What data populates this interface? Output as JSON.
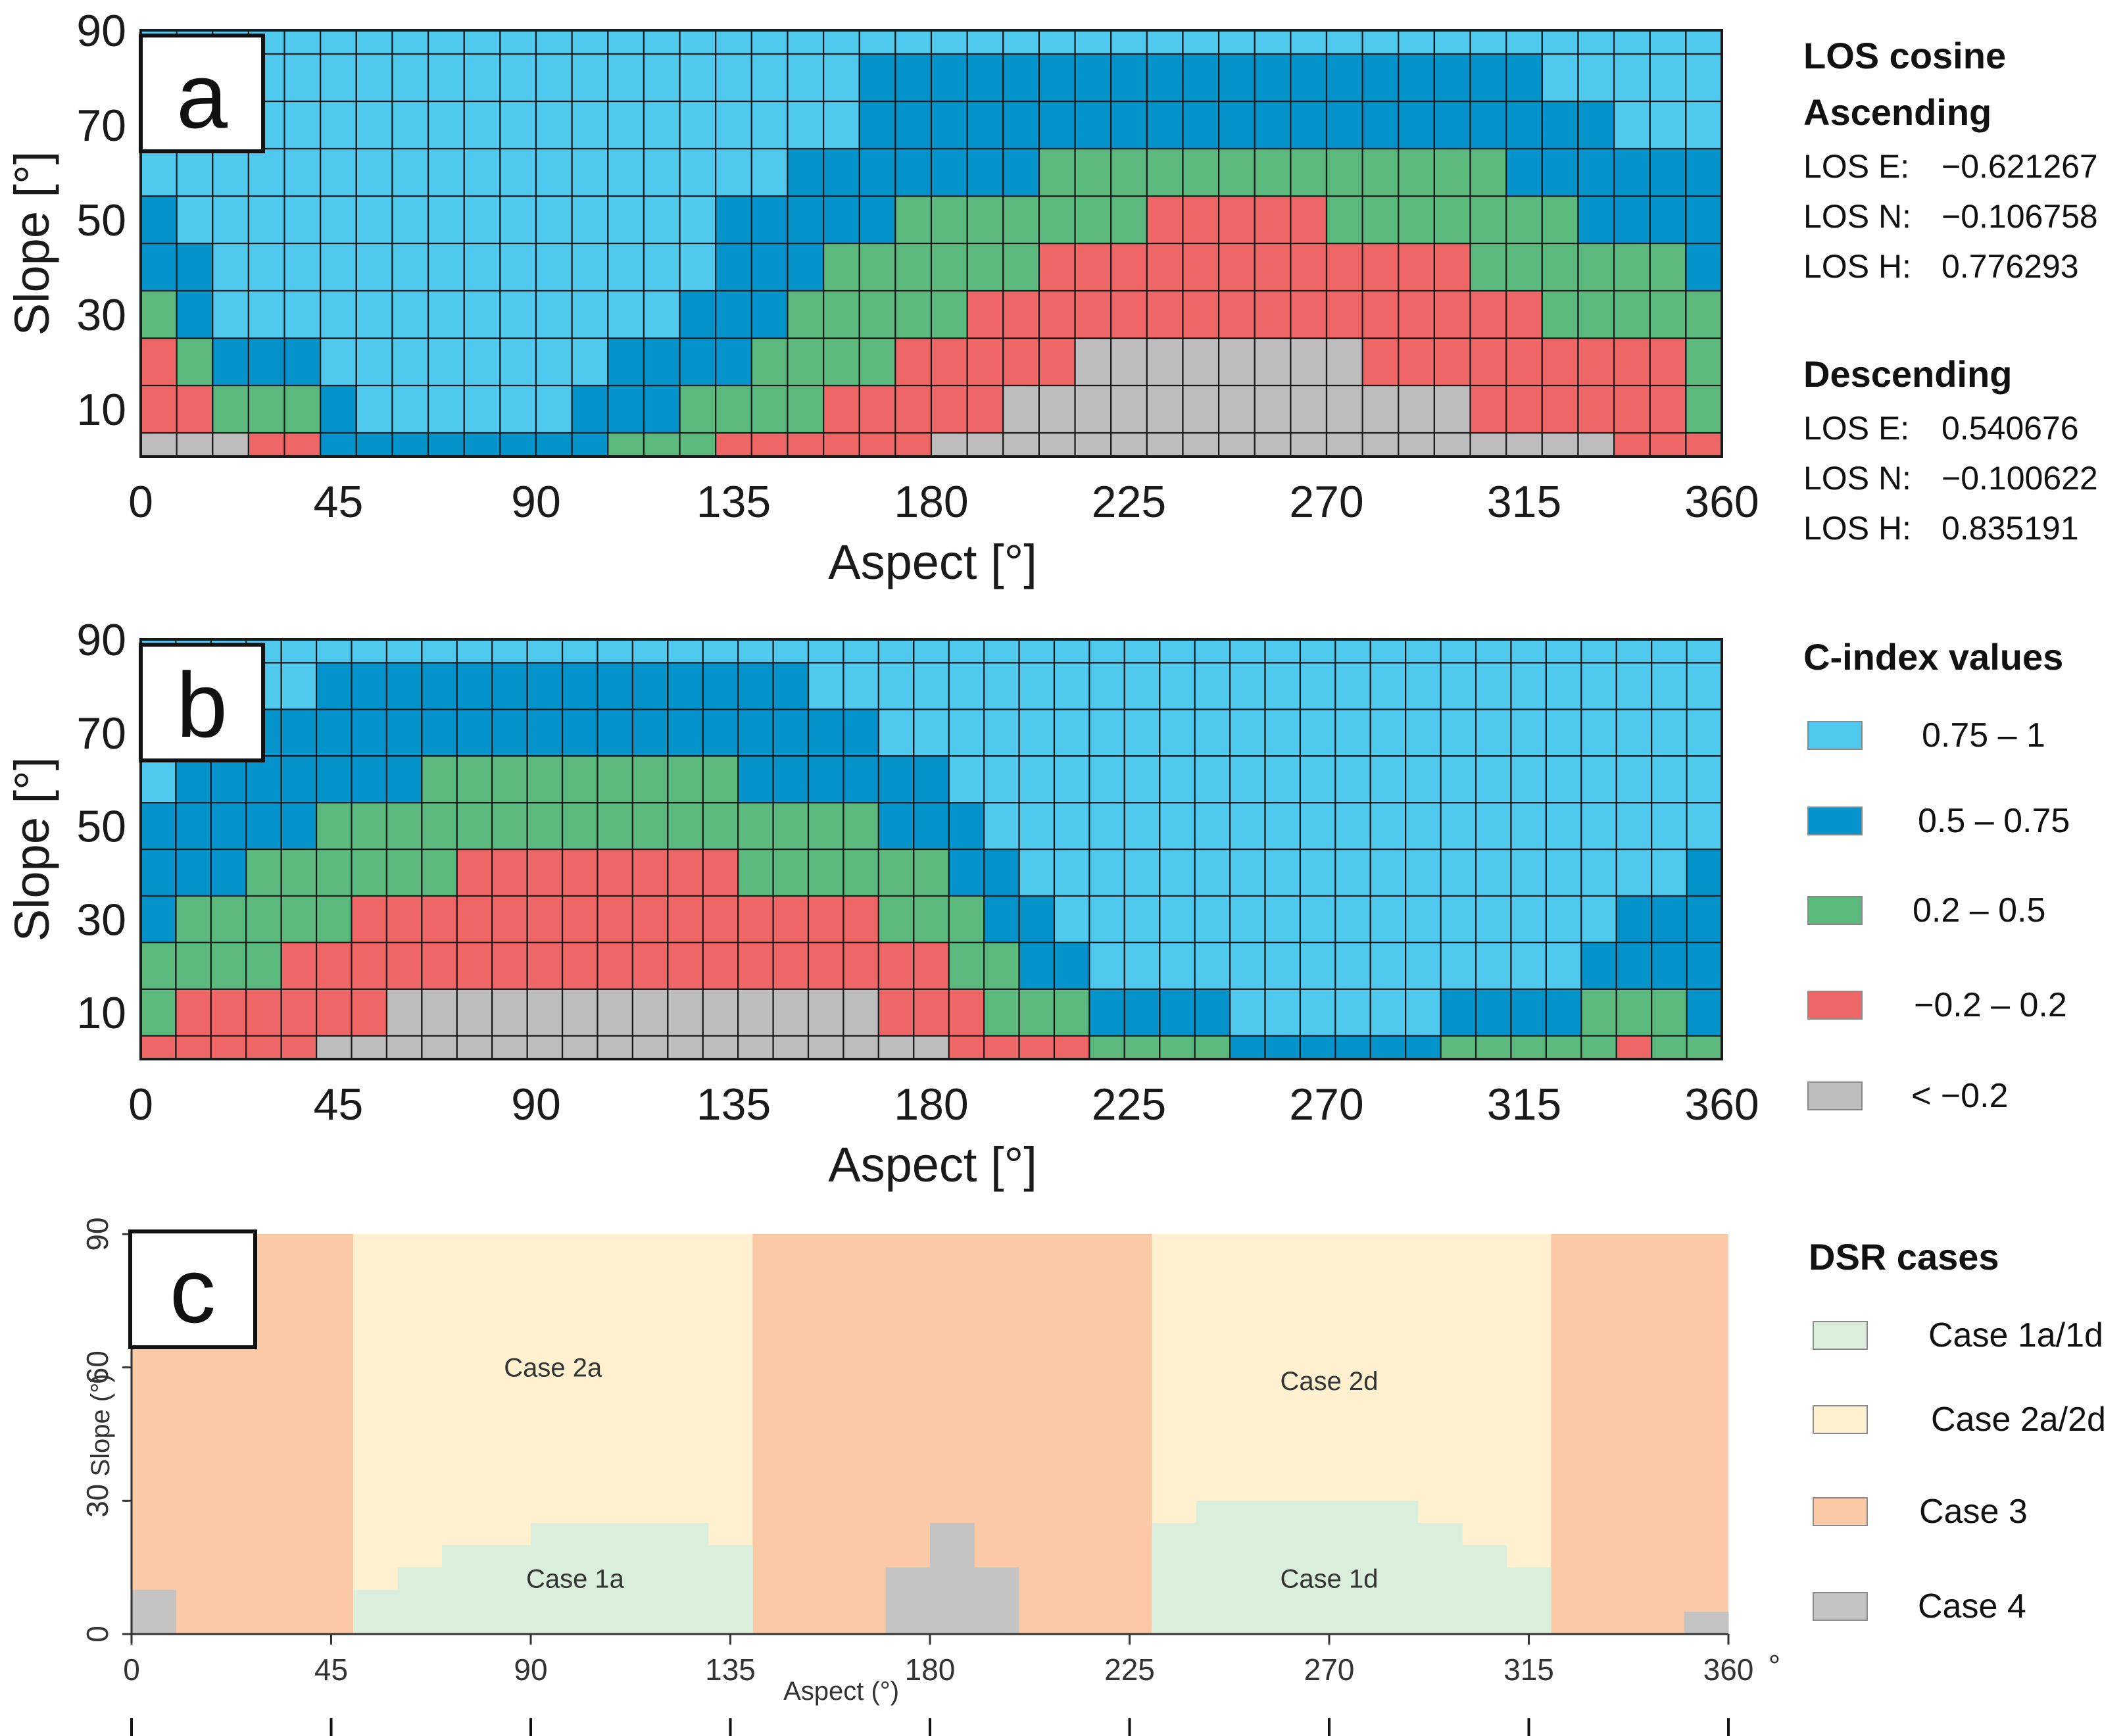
{
  "colors": {
    "c075_1": "#4fc9ee",
    "c05_075": "#0593cc",
    "c02_05": "#5cb97d",
    "cm02_02": "#ee6766",
    "clt_m02": "#bdbdbd",
    "case1": "#d9efdb",
    "case2": "#fff1cf",
    "case3": "#fbc9a5",
    "case4": "#c3c3c3",
    "grid": "#1a1a1a"
  },
  "chart_data": [
    {
      "id": "a",
      "type": "heatmap",
      "panel_label": "a",
      "xlabel": "Aspect [°]",
      "ylabel": "Slope [°]",
      "xlim": [
        0,
        360
      ],
      "ylim": [
        0,
        90
      ],
      "x_ticks": [
        "0",
        "45",
        "90",
        "135",
        "180",
        "225",
        "270",
        "315",
        "360"
      ],
      "y_ticks": [
        "10",
        "30",
        "50",
        "70",
        "90"
      ],
      "cell_size_deg": 10,
      "note": "C-index class per (aspect, slope) cell; class 0 = 0.75–1, 1 = 0.5–0.75, 2 = 0.2–0.5, 3 = −0.2–0.2, 4 = < −0.2",
      "upper_bounds": [
        [
          5,
          25,
          35,
          55,
          95
        ],
        [
          5,
          15,
          25,
          45,
          95
        ],
        [
          5,
          5,
          15,
          25,
          95
        ],
        [
          -1,
          5,
          15,
          25,
          95
        ],
        [
          -1,
          5,
          15,
          25,
          95
        ],
        [
          -1,
          -1,
          -1,
          15,
          95
        ],
        [
          -1,
          -1,
          -1,
          5,
          95
        ],
        [
          -1,
          -1,
          -1,
          5,
          95
        ],
        [
          -1,
          -1,
          -1,
          5,
          95
        ],
        [
          -1,
          -1,
          -1,
          5,
          95
        ],
        [
          -1,
          -1,
          -1,
          5,
          95
        ],
        [
          -1,
          -1,
          -1,
          5,
          95
        ],
        [
          -1,
          -1,
          -1,
          15,
          95
        ],
        [
          -1,
          -1,
          5,
          25,
          95
        ],
        [
          -1,
          -1,
          5,
          25,
          95
        ],
        [
          -1,
          -1,
          15,
          35,
          95
        ],
        [
          -1,
          5,
          15,
          55,
          95
        ],
        [
          -1,
          5,
          25,
          55,
          95
        ],
        [
          -1,
          5,
          35,
          65,
          95
        ],
        [
          -1,
          15,
          45,
          65,
          95
        ],
        [
          -1,
          15,
          45,
          85,
          95
        ],
        [
          -1,
          25,
          55,
          85,
          95
        ],
        [
          5,
          25,
          55,
          85,
          95
        ],
        [
          5,
          35,
          55,
          85,
          95
        ],
        [
          15,
          35,
          55,
          85,
          95
        ],
        [
          15,
          45,
          65,
          85,
          95
        ],
        [
          25,
          45,
          65,
          85,
          95
        ],
        [
          25,
          45,
          65,
          85,
          95
        ],
        [
          25,
          55,
          65,
          85,
          95
        ],
        [
          25,
          55,
          65,
          85,
          95
        ],
        [
          25,
          55,
          65,
          85,
          95
        ],
        [
          25,
          55,
          65,
          85,
          95
        ],
        [
          25,
          55,
          65,
          85,
          95
        ],
        [
          25,
          45,
          65,
          85,
          95
        ],
        [
          15,
          45,
          65,
          85,
          95
        ],
        [
          15,
          45,
          65,
          85,
          95
        ],
        [
          15,
          45,
          65,
          85,
          95
        ],
        [
          5,
          35,
          65,
          85,
          95
        ],
        [
          5,
          35,
          55,
          85,
          95
        ],
        [
          5,
          25,
          55,
          75,
          95
        ],
        [
          5,
          25,
          45,
          75,
          95
        ],
        [
          -1,
          25,
          45,
          65,
          85
        ],
        [
          -1,
          25,
          45,
          65,
          85
        ],
        [
          -1,
          5,
          35,
          65,
          85
        ]
      ]
    },
    {
      "id": "b",
      "type": "heatmap",
      "panel_label": "b",
      "xlabel": "Aspect [°]",
      "ylabel": "Slope [°]",
      "xlim": [
        0,
        360
      ],
      "ylim": [
        0,
        90
      ],
      "x_ticks": [
        "0",
        "45",
        "90",
        "135",
        "180",
        "225",
        "270",
        "315",
        "360"
      ],
      "y_ticks": [
        "10",
        "30",
        "50",
        "70",
        "90"
      ],
      "cell_size_deg": 10,
      "note": "C-index class per (aspect, slope) cell; class 0 = 0.75–1, 1 = 0.5–0.75, 2 = 0.2–0.5, 3 = −0.2–0.2, 4 = < −0.2",
      "upper_bounds": [
        [
          -1,
          5,
          25,
          55,
          95
        ],
        [
          -1,
          15,
          35,
          65,
          95
        ],
        [
          -1,
          15,
          35,
          75,
          95
        ],
        [
          -1,
          15,
          45,
          75,
          95
        ],
        [
          -1,
          25,
          45,
          75,
          95
        ],
        [
          5,
          25,
          55,
          85,
          95
        ],
        [
          5,
          35,
          55,
          85,
          95
        ],
        [
          15,
          35,
          55,
          85,
          95
        ],
        [
          15,
          35,
          65,
          85,
          95
        ],
        [
          15,
          45,
          65,
          85,
          95
        ],
        [
          15,
          45,
          65,
          85,
          95
        ],
        [
          15,
          45,
          65,
          85,
          95
        ],
        [
          15,
          45,
          65,
          85,
          95
        ],
        [
          15,
          45,
          65,
          85,
          95
        ],
        [
          15,
          45,
          65,
          85,
          95
        ],
        [
          15,
          45,
          65,
          85,
          95
        ],
        [
          15,
          45,
          65,
          85,
          95
        ],
        [
          15,
          35,
          55,
          85,
          95
        ],
        [
          15,
          35,
          55,
          85,
          95
        ],
        [
          15,
          35,
          55,
          75,
          85
        ],
        [
          15,
          35,
          55,
          75,
          85
        ],
        [
          5,
          25,
          45,
          65,
          75
        ],
        [
          5,
          25,
          45,
          65,
          75
        ],
        [
          -1,
          15,
          35,
          55,
          65
        ],
        [
          -1,
          5,
          25,
          45,
          65
        ],
        [
          -1,
          5,
          15,
          35,
          55
        ],
        [
          -1,
          5,
          15,
          25,
          45
        ],
        [
          -1,
          -1,
          5,
          15,
          35
        ],
        [
          -1,
          -1,
          5,
          15,
          35
        ],
        [
          -1,
          -1,
          5,
          15,
          25
        ],
        [
          -1,
          -1,
          5,
          15,
          25
        ],
        [
          -1,
          -1,
          -1,
          5,
          15
        ],
        [
          -1,
          -1,
          -1,
          5,
          15
        ],
        [
          -1,
          -1,
          -1,
          5,
          15
        ],
        [
          -1,
          -1,
          -1,
          5,
          15
        ],
        [
          -1,
          -1,
          -1,
          5,
          15
        ],
        [
          -1,
          -1,
          -1,
          5,
          15
        ],
        [
          -1,
          -1,
          5,
          15,
          25
        ],
        [
          -1,
          -1,
          5,
          15,
          25
        ],
        [
          -1,
          -1,
          5,
          15,
          35
        ],
        [
          -1,
          -1,
          5,
          15,
          35
        ],
        [
          -1,
          -1,
          15,
          25,
          45
        ],
        [
          -1,
          5,
          15,
          35,
          55
        ],
        [
          -1,
          -1,
          15,
          35,
          65
        ],
        [
          -1,
          -1,
          5,
          45,
          85
        ]
      ]
    },
    {
      "id": "c",
      "type": "heatmap",
      "panel_label": "c",
      "xlabel": "Aspect (°)",
      "ylabel": "Slope (°)",
      "x_unit_suffix": "°",
      "xlim": [
        0,
        360
      ],
      "ylim": [
        0,
        90
      ],
      "x_ticks": [
        "0",
        "45",
        "90",
        "135",
        "180",
        "225",
        "270",
        "315",
        "360"
      ],
      "y_ticks": [
        "0",
        "30",
        "60",
        "90"
      ],
      "regions": [
        {
          "case": "case3",
          "from": 0,
          "to": 50
        },
        {
          "case": "case2",
          "from": 50,
          "to": 140
        },
        {
          "case": "case3",
          "from": 140,
          "to": 230
        },
        {
          "case": "case2",
          "from": 230,
          "to": 320
        },
        {
          "case": "case3",
          "from": 320,
          "to": 360
        }
      ],
      "case1_profile": [
        {
          "from": 50,
          "to": 60,
          "slope_top": 10
        },
        {
          "from": 60,
          "to": 70,
          "slope_top": 15
        },
        {
          "from": 70,
          "to": 90,
          "slope_top": 20
        },
        {
          "from": 90,
          "to": 130,
          "slope_top": 25
        },
        {
          "from": 130,
          "to": 140,
          "slope_top": 20
        },
        {
          "from": 230,
          "to": 240,
          "slope_top": 25
        },
        {
          "from": 240,
          "to": 290,
          "slope_top": 30
        },
        {
          "from": 290,
          "to": 300,
          "slope_top": 25
        },
        {
          "from": 300,
          "to": 310,
          "slope_top": 20
        },
        {
          "from": 310,
          "to": 320,
          "slope_top": 15
        }
      ],
      "case4_cells": [
        {
          "from": 0,
          "to": 10,
          "slope_top": 10
        },
        {
          "from": 170,
          "to": 180,
          "slope_top": 15
        },
        {
          "from": 180,
          "to": 190,
          "slope_top": 25
        },
        {
          "from": 190,
          "to": 200,
          "slope_top": 15
        },
        {
          "from": 350,
          "to": 360,
          "slope_top": 5
        }
      ],
      "annotations": [
        {
          "text": "Case 2a",
          "aspect": 95,
          "slope": 60
        },
        {
          "text": "Case 2d",
          "aspect": 270,
          "slope": 57
        },
        {
          "text": "Case 1a",
          "aspect": 100,
          "slope": 12.5
        },
        {
          "text": "Case 1d",
          "aspect": 270,
          "slope": 12.5
        }
      ]
    }
  ],
  "legend_los": {
    "title1": "LOS cosine",
    "title2": "Ascending",
    "asc": [
      {
        "key": "LOS E:",
        "value": "−0.621267"
      },
      {
        "key": "LOS N:",
        "value": "−0.106758"
      },
      {
        "key": "LOS H:",
        "value": "0.776293"
      }
    ],
    "title3": "Descending",
    "desc": [
      {
        "key": "LOS E:",
        "value": "0.540676"
      },
      {
        "key": "LOS N:",
        "value": "−0.100622"
      },
      {
        "key": "LOS H:",
        "value": "0.835191"
      }
    ]
  },
  "legend_cindex": {
    "title": "C-index values",
    "items": [
      "0.75 – 1",
      "0.5 – 0.75",
      "0.2 – 0.5",
      "−0.2 – 0.2",
      "< −0.2"
    ]
  },
  "legend_dsr": {
    "title": "DSR cases",
    "items": [
      "Case 1a/1d",
      "Case 2a/2d",
      "Case 3",
      "Case 4"
    ]
  }
}
